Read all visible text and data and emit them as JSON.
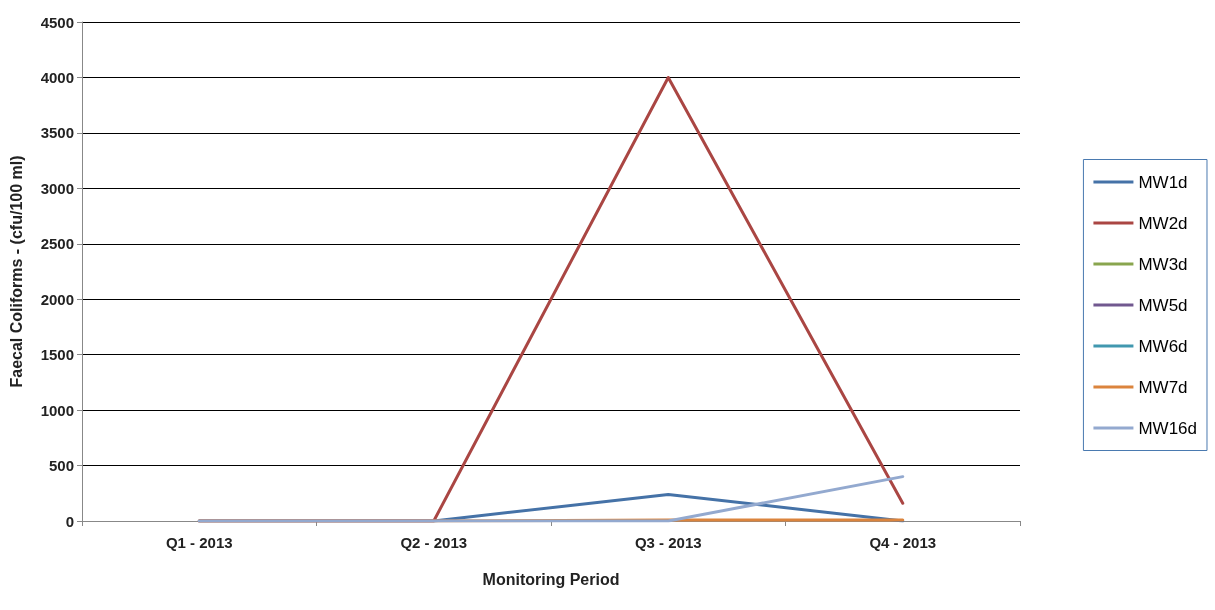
{
  "chart_data": {
    "type": "line",
    "xlabel": "Monitoring Period",
    "ylabel": "Faecal Coliforms - (cfu/100 ml)",
    "categories": [
      "Q1 - 2013",
      "Q2 - 2013",
      "Q3 - 2013",
      "Q4 - 2013"
    ],
    "series": [
      {
        "name": "MW1d",
        "color": "#4572a7",
        "values": [
          0,
          0,
          240,
          0
        ]
      },
      {
        "name": "MW2d",
        "color": "#aa4643",
        "values": [
          0,
          0,
          4000,
          160
        ]
      },
      {
        "name": "MW3d",
        "color": "#89a54e",
        "values": [
          null,
          null,
          null,
          null
        ]
      },
      {
        "name": "MW5d",
        "color": "#71588f",
        "values": [
          null,
          null,
          null,
          null
        ]
      },
      {
        "name": "MW6d",
        "color": "#4198af",
        "values": [
          null,
          null,
          null,
          null
        ]
      },
      {
        "name": "MW7d",
        "color": "#db843d",
        "values": [
          0,
          0,
          10,
          10
        ]
      },
      {
        "name": "MW16d",
        "color": "#93a9cf",
        "values": [
          0,
          0,
          0,
          400
        ]
      }
    ],
    "ylim": [
      0,
      4500
    ],
    "yticks": [
      0,
      500,
      1000,
      1500,
      2000,
      2500,
      3000,
      3500,
      4000,
      4500
    ],
    "grid": "y",
    "legend": "right",
    "marker": "none",
    "line_style": "solid"
  }
}
